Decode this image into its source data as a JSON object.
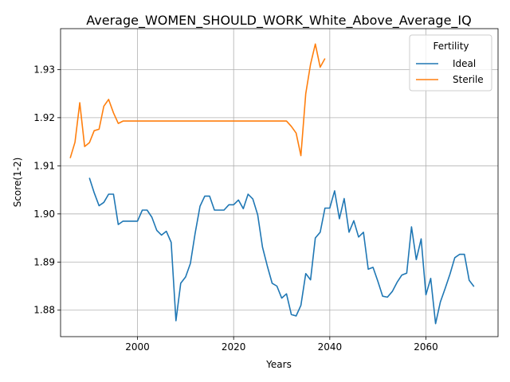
{
  "chart_data": {
    "type": "line",
    "title": "Average_WOMEN_SHOULD_WORK_White_Above_Average_IQ",
    "xlabel": "Years",
    "ylabel": "Score(1-2)",
    "xlim": [
      1984,
      2075
    ],
    "ylim": [
      1.8745,
      1.9385
    ],
    "xticks": [
      2000,
      2020,
      2040,
      2060
    ],
    "yticks": [
      1.88,
      1.89,
      1.9,
      1.91,
      1.92,
      1.93
    ],
    "ytick_labels": [
      "1.88",
      "1.89",
      "1.90",
      "1.91",
      "1.92",
      "1.93"
    ],
    "grid": true,
    "legend": {
      "title": "Fertility",
      "placement": "top-right"
    },
    "series": [
      {
        "name": "Ideal",
        "color": "#1f77b4",
        "x": [
          1990,
          1991,
          1992,
          1993,
          1994,
          1995,
          1996,
          1997,
          1998,
          1999,
          2000,
          2001,
          2002,
          2003,
          2004,
          2005,
          2006,
          2007,
          2008,
          2009,
          2010,
          2011,
          2012,
          2013,
          2014,
          2015,
          2016,
          2017,
          2018,
          2019,
          2020,
          2021,
          2022,
          2023,
          2024,
          2025,
          2026,
          2027,
          2028,
          2029,
          2030,
          2031,
          2032,
          2033,
          2034,
          2035,
          2036,
          2037,
          2038,
          2039,
          2040,
          2041,
          2042,
          2043,
          2044,
          2045,
          2046,
          2047,
          2048,
          2049,
          2050,
          2051,
          2052,
          2053,
          2054,
          2055,
          2056,
          2057,
          2058,
          2059,
          2060,
          2061,
          2062,
          2063,
          2064,
          2065,
          2066,
          2067,
          2068,
          2069,
          2070
        ],
        "y": [
          1.9075,
          1.9044,
          1.9017,
          1.9024,
          1.9041,
          1.9041,
          1.8978,
          1.8985,
          1.8985,
          1.8985,
          1.8985,
          1.9008,
          1.9008,
          1.8993,
          1.8966,
          1.8956,
          1.8964,
          1.8941,
          1.8778,
          1.8856,
          1.8869,
          1.8897,
          1.896,
          1.9016,
          1.9037,
          1.9037,
          1.9008,
          1.9008,
          1.9008,
          1.9019,
          1.9019,
          1.9029,
          1.9011,
          1.9041,
          1.9031,
          1.8998,
          1.8931,
          1.8892,
          1.8856,
          1.885,
          1.8825,
          1.8834,
          1.8791,
          1.8788,
          1.881,
          1.8876,
          1.8863,
          1.895,
          1.8962,
          1.9012,
          1.9012,
          1.9048,
          1.899,
          1.9032,
          1.8962,
          1.8986,
          1.8952,
          1.8962,
          1.8885,
          1.8889,
          1.886,
          1.8829,
          1.8827,
          1.8839,
          1.8858,
          1.8873,
          1.8877,
          1.8973,
          1.8905,
          1.8948,
          1.8832,
          1.8866,
          1.8772,
          1.8817,
          1.8845,
          1.8875,
          1.8909,
          1.8916,
          1.8916,
          1.8862,
          1.8849
        ]
      },
      {
        "name": "Sterile",
        "color": "#ff7f0e",
        "x": [
          1986,
          1987,
          1988,
          1989,
          1990,
          1991,
          1992,
          1993,
          1994,
          1995,
          1996,
          1997,
          1998,
          1999,
          2000,
          2005,
          2010,
          2015,
          2020,
          2025,
          2030,
          2031,
          2032,
          2033,
          2034,
          2035,
          2036,
          2037,
          2038,
          2039
        ],
        "y": [
          1.9116,
          1.9149,
          1.9231,
          1.914,
          1.9148,
          1.9173,
          1.9176,
          1.9224,
          1.9238,
          1.921,
          1.9188,
          1.9193,
          1.9193,
          1.9193,
          1.9193,
          1.9193,
          1.9193,
          1.9193,
          1.9193,
          1.9193,
          1.9193,
          1.9193,
          1.9182,
          1.9168,
          1.9121,
          1.925,
          1.9311,
          1.9353,
          1.9305,
          1.9323
        ]
      }
    ]
  }
}
